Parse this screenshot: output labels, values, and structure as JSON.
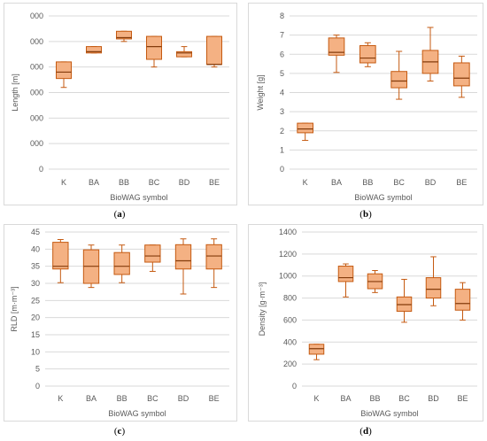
{
  "colors": {
    "box_fill": "#f4b183",
    "box_stroke": "#c55a11",
    "median_stroke": "#843c0c",
    "grid": "#d9d9d9",
    "text": "#595959",
    "panel_border": "#d9d9d9"
  },
  "captions": {
    "a": "a",
    "b": "b",
    "c": "c",
    "d": "d"
  },
  "chart_data": [
    {
      "id": "a",
      "type": "boxplot",
      "xlabel": "BioWAG symbol",
      "ylabel": "Length [m]",
      "categories": [
        "K",
        "BA",
        "BB",
        "BC",
        "BD",
        "BE"
      ],
      "yticks": [
        "0",
        "000",
        "000",
        "000",
        "000",
        "000",
        "000"
      ],
      "ylim": [
        0,
        6
      ],
      "grid": true,
      "boxes": [
        {
          "min": 3.2,
          "q1": 3.55,
          "median": 3.8,
          "q3": 4.2,
          "max": 4.2
        },
        {
          "min": 4.55,
          "q1": 4.55,
          "median": 4.6,
          "q3": 4.8,
          "max": 4.8
        },
        {
          "min": 5.0,
          "q1": 5.1,
          "median": 5.15,
          "q3": 5.4,
          "max": 5.4
        },
        {
          "min": 4.0,
          "q1": 4.3,
          "median": 4.8,
          "q3": 5.2,
          "max": 5.2
        },
        {
          "min": 4.4,
          "q1": 4.4,
          "median": 4.55,
          "q3": 4.6,
          "max": 4.8
        },
        {
          "min": 4.0,
          "q1": 4.1,
          "median": 4.1,
          "q3": 5.2,
          "max": 5.2
        }
      ]
    },
    {
      "id": "b",
      "type": "boxplot",
      "xlabel": "BioWAG symbol",
      "ylabel": "Weight [g]",
      "categories": [
        "K",
        "BA",
        "BB",
        "BC",
        "BD",
        "BE"
      ],
      "yticks": [
        "0",
        "1",
        "2",
        "3",
        "4",
        "5",
        "6",
        "7",
        "8"
      ],
      "ylim": [
        0,
        8
      ],
      "grid": true,
      "boxes": [
        {
          "min": 1.5,
          "q1": 1.9,
          "median": 2.1,
          "q3": 2.4,
          "max": 2.4
        },
        {
          "min": 5.05,
          "q1": 5.95,
          "median": 6.1,
          "q3": 6.85,
          "max": 7.0
        },
        {
          "min": 5.35,
          "q1": 5.55,
          "median": 5.8,
          "q3": 6.45,
          "max": 6.6
        },
        {
          "min": 3.65,
          "q1": 4.25,
          "median": 4.6,
          "q3": 5.1,
          "max": 6.15
        },
        {
          "min": 4.6,
          "q1": 5.0,
          "median": 5.6,
          "q3": 6.2,
          "max": 7.4
        },
        {
          "min": 3.75,
          "q1": 4.35,
          "median": 4.75,
          "q3": 5.55,
          "max": 5.9
        }
      ]
    },
    {
      "id": "c",
      "type": "boxplot",
      "xlabel": "BioWAG symbol",
      "ylabel": "RLD [m·m⁻³]",
      "categories": [
        "K",
        "BA",
        "BB",
        "BC",
        "BD",
        "BE"
      ],
      "yticks": [
        "0",
        "5",
        "10",
        "15",
        "20",
        "25",
        "30",
        "35",
        "40",
        "45"
      ],
      "ylim": [
        0,
        45
      ],
      "grid": true,
      "boxes": [
        {
          "min": 30.2,
          "q1": 34.2,
          "median": 35.0,
          "q3": 42.0,
          "max": 42.8
        },
        {
          "min": 28.8,
          "q1": 30.0,
          "median": 35.0,
          "q3": 39.8,
          "max": 41.2
        },
        {
          "min": 30.2,
          "q1": 32.6,
          "median": 35.0,
          "q3": 39.0,
          "max": 41.2
        },
        {
          "min": 33.5,
          "q1": 36.2,
          "median": 38.0,
          "q3": 41.2,
          "max": 41.2
        },
        {
          "min": 26.9,
          "q1": 34.2,
          "median": 36.6,
          "q3": 41.3,
          "max": 43.0
        },
        {
          "min": 28.8,
          "q1": 34.2,
          "median": 38.0,
          "q3": 41.3,
          "max": 43.0
        }
      ]
    },
    {
      "id": "d",
      "type": "boxplot",
      "xlabel": "BioWAG symbol",
      "ylabel": "Density [g·m⁻³]",
      "categories": [
        "K",
        "BA",
        "BB",
        "BC",
        "BD",
        "BE"
      ],
      "yticks": [
        "0",
        "200",
        "400",
        "600",
        "800",
        "1000",
        "1200",
        "1400"
      ],
      "ylim": [
        0,
        1400
      ],
      "grid": true,
      "boxes": [
        {
          "min": 240,
          "q1": 290,
          "median": 340,
          "q3": 380,
          "max": 380
        },
        {
          "min": 810,
          "q1": 950,
          "median": 985,
          "q3": 1090,
          "max": 1110
        },
        {
          "min": 850,
          "q1": 885,
          "median": 950,
          "q3": 1020,
          "max": 1050
        },
        {
          "min": 580,
          "q1": 680,
          "median": 740,
          "q3": 810,
          "max": 970
        },
        {
          "min": 730,
          "q1": 800,
          "median": 880,
          "q3": 985,
          "max": 1175
        },
        {
          "min": 600,
          "q1": 690,
          "median": 750,
          "q3": 880,
          "max": 940
        }
      ]
    }
  ]
}
